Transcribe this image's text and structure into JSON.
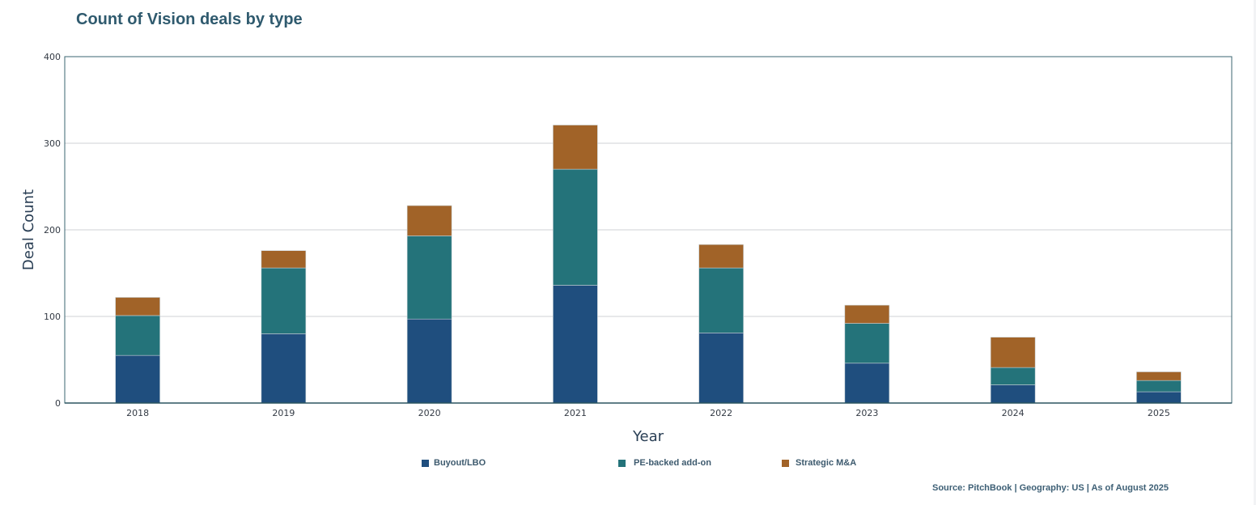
{
  "chart_data": {
    "type": "bar",
    "stacked": true,
    "title": "Count of Vision deals by type",
    "xlabel": "Year",
    "ylabel": "Deal Count",
    "ylim": [
      0,
      400
    ],
    "yticks": [
      0,
      100,
      200,
      300,
      400
    ],
    "grid": true,
    "legend_position": "bottom",
    "categories": [
      "2018",
      "2019",
      "2020",
      "2021",
      "2022",
      "2023",
      "2024",
      "2025"
    ],
    "series": [
      {
        "name": "Buyout/LBO",
        "color": "#1f4e7e",
        "values": [
          55,
          80,
          97,
          136,
          81,
          46,
          21,
          13
        ]
      },
      {
        "name": "PE-backed add-on",
        "color": "#24737a",
        "values": [
          46,
          76,
          96,
          134,
          75,
          46,
          20,
          13
        ]
      },
      {
        "name": "Strategic M&A",
        "color": "#a16328",
        "values": [
          21,
          20,
          35,
          51,
          27,
          21,
          35,
          10
        ]
      }
    ],
    "source": "Source: PitchBook | Geography: US | As of August 2025"
  }
}
